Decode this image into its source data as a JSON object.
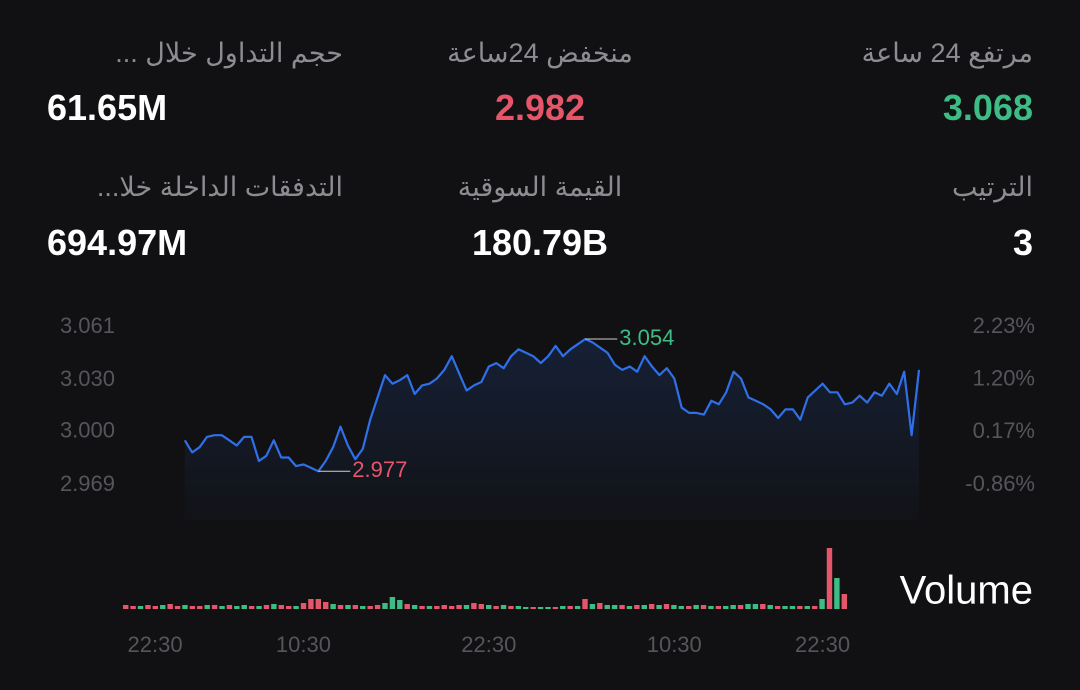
{
  "stats": [
    {
      "label": "مرتفع 24 ساعة",
      "value": "3.068",
      "color": "#3dbd85"
    },
    {
      "label": "منخفض 24ساعة",
      "value": "2.982",
      "color": "#e5566b"
    },
    {
      "label": "حجم التداول خلال ...",
      "value": "61.65M",
      "color": "#ffffff"
    },
    {
      "label": "الترتيب",
      "value": "3",
      "color": "#ffffff"
    },
    {
      "label": "القيمة السوقية",
      "value": "180.79B",
      "color": "#ffffff"
    },
    {
      "label": "التدفقات الداخلة خلا...",
      "value": "694.97M",
      "color": "#ffffff"
    }
  ],
  "chart_data": [
    {
      "type": "line",
      "color": "#2f6fe8",
      "up_color": "#3dbd85",
      "down_color": "#e5566b",
      "ylim": [
        2.969,
        3.061
      ],
      "yticks": [
        3.061,
        {
          "value": 3.03,
          "label": "3.030"
        },
        {
          "value": 3,
          "label": "3.000"
        },
        2.969
      ],
      "y2lim": [
        -0.86,
        2.23
      ],
      "y2ticks": [
        {
          "value": 2.23,
          "label": "2.23%"
        },
        {
          "value": 1.2,
          "label": "1.20%"
        },
        {
          "value": 0.17,
          "label": "0.17%"
        },
        {
          "value": -0.86,
          "label": "-0.86%"
        }
      ],
      "xlim": [
        -9,
        99
      ],
      "xticks": [
        {
          "value": -4,
          "label": "22:30"
        },
        {
          "value": 16,
          "label": "10:30"
        },
        {
          "value": 41,
          "label": "22:30"
        },
        {
          "value": 66,
          "label": "10:30"
        },
        {
          "value": 86,
          "label": "22:30"
        }
      ],
      "grid": false,
      "values": [
        2.995,
        2.988,
        2.991,
        2.997,
        2.998,
        2.998,
        2.995,
        2.992,
        2.997,
        2.997,
        2.983,
        2.986,
        2.995,
        2.985,
        2.985,
        2.98,
        2.981,
        2.979,
        2.977,
        2.983,
        2.991,
        3.003,
        2.992,
        2.984,
        2.99,
        3.007,
        3.02,
        3.033,
        3.028,
        3.03,
        3.033,
        3.022,
        3.027,
        3.028,
        3.031,
        3.036,
        3.044,
        3.034,
        3.024,
        3.027,
        3.029,
        3.038,
        3.04,
        3.037,
        3.044,
        3.048,
        3.046,
        3.044,
        3.04,
        3.044,
        3.05,
        3.044,
        3.048,
        3.051,
        3.054,
        3.052,
        3.049,
        3.046,
        3.039,
        3.036,
        3.038,
        3.035,
        3.044,
        3.038,
        3.033,
        3.037,
        3.031,
        3.014,
        3.011,
        3.011,
        3.01,
        3.018,
        3.016,
        3.023,
        3.035,
        3.031,
        3.02,
        3.018,
        3.016,
        3.013,
        3.008,
        3.013,
        3.013,
        3.007,
        3.02,
        3.024,
        3.028,
        3.023,
        3.023,
        3.016,
        3.017,
        3.021,
        3.017,
        3.023,
        3.021,
        3.028,
        3.022,
        3.035,
        2.998,
        3.036
      ]
    },
    {
      "type": "bar",
      "name": "Volume",
      "values": [
        4,
        3,
        3,
        4,
        3,
        4,
        5,
        3,
        4,
        3,
        3,
        4,
        4,
        3,
        4,
        3,
        4,
        3,
        3,
        4,
        5,
        4,
        3,
        3,
        6,
        10,
        10,
        7,
        5,
        4,
        4,
        4,
        3,
        3,
        4,
        6,
        12,
        9,
        5,
        4,
        3,
        3,
        3,
        4,
        3,
        4,
        4,
        6,
        5,
        4,
        3,
        4,
        3,
        3,
        2,
        2,
        2,
        2,
        2,
        3,
        3,
        3,
        10,
        5,
        6,
        4,
        4,
        4,
        3,
        4,
        4,
        5,
        4,
        5,
        4,
        3,
        3,
        4,
        4,
        3,
        3,
        3,
        4,
        4,
        5,
        5,
        5,
        4,
        3,
        3,
        3,
        3,
        3,
        3,
        10,
        61,
        31,
        15
      ],
      "colors": [
        "#e5566b",
        "#e5566b",
        "#3dbd85",
        "#e5566b",
        "#e5566b",
        "#3dbd85",
        "#e5566b",
        "#e5566b",
        "#3dbd85",
        "#e5566b",
        "#e5566b",
        "#3dbd85",
        "#e5566b",
        "#3dbd85",
        "#e5566b",
        "#3dbd85",
        "#3dbd85",
        "#e5566b",
        "#3dbd85",
        "#e5566b",
        "#3dbd85",
        "#e5566b",
        "#e5566b",
        "#3dbd85",
        "#e5566b",
        "#e5566b",
        "#e5566b",
        "#e5566b",
        "#3dbd85",
        "#e5566b",
        "#3dbd85",
        "#e5566b",
        "#3dbd85",
        "#e5566b",
        "#e5566b",
        "#3dbd85",
        "#3dbd85",
        "#3dbd85",
        "#e5566b",
        "#3dbd85",
        "#e5566b",
        "#3dbd85",
        "#e5566b",
        "#e5566b",
        "#e5566b",
        "#e5566b",
        "#3dbd85",
        "#e5566b",
        "#e5566b",
        "#3dbd85",
        "#e5566b",
        "#3dbd85",
        "#e5566b",
        "#3dbd85",
        "#3dbd85",
        "#e5566b",
        "#3dbd85",
        "#3dbd85",
        "#e5566b",
        "#3dbd85",
        "#e5566b",
        "#3dbd85",
        "#e5566b",
        "#3dbd85",
        "#e5566b",
        "#3dbd85",
        "#3dbd85",
        "#e5566b",
        "#3dbd85",
        "#e5566b",
        "#3dbd85",
        "#e5566b",
        "#3dbd85",
        "#e5566b",
        "#3dbd85",
        "#3dbd85",
        "#e5566b",
        "#3dbd85",
        "#e5566b",
        "#3dbd85",
        "#e5566b",
        "#3dbd85",
        "#3dbd85",
        "#e5566b",
        "#3dbd85",
        "#3dbd85",
        "#e5566b",
        "#3dbd85",
        "#e5566b",
        "#3dbd85",
        "#3dbd85",
        "#e5566b",
        "#3dbd85",
        "#e5566b",
        "#3dbd85",
        "#e5566b",
        "#3dbd85",
        "#e5566b"
      ]
    }
  ]
}
